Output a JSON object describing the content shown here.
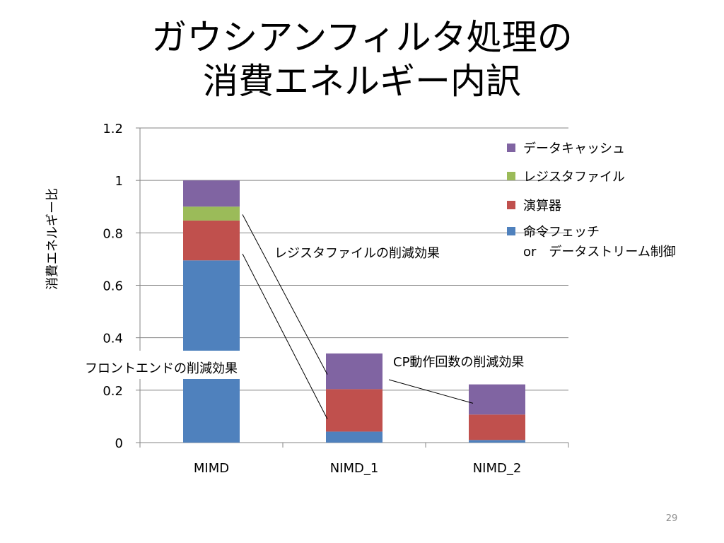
{
  "slide": {
    "title_line1": "ガウシアンフィルタ処理の",
    "title_line2": "消費エネルギー内訳",
    "page_number": "29"
  },
  "chart_data": {
    "type": "bar",
    "stacked": true,
    "title": "",
    "xlabel": "",
    "ylabel": "消費エネルギー比",
    "categories": [
      "MIMD",
      "NIMD_1",
      "NIMD_2"
    ],
    "ylim": [
      0,
      1.2
    ],
    "yticks": [
      "0",
      "0.2",
      "0.4",
      "0.6",
      "0.8",
      "1",
      "1.2"
    ],
    "grid": true,
    "legend_position": "right",
    "series": [
      {
        "name": "命令フェッチ",
        "name_line2": "or　データストリーム制御",
        "color": "#4f81bd",
        "values": [
          0.695,
          0.042,
          0.01
        ]
      },
      {
        "name": "演算器",
        "color": "#c0504d",
        "values": [
          0.152,
          0.162,
          0.097
        ]
      },
      {
        "name": "レジスタファイル",
        "color": "#9bbb59",
        "values": [
          0.053,
          0.0,
          0.0
        ]
      },
      {
        "name": "データキャッシュ",
        "color": "#8064a2",
        "values": [
          0.1,
          0.136,
          0.115
        ]
      }
    ],
    "annotations": [
      {
        "text": "レジスタファイルの削減効果"
      },
      {
        "text": "フロントエンドの削減効果"
      },
      {
        "text": "CP動作回数の削減効果"
      }
    ]
  }
}
